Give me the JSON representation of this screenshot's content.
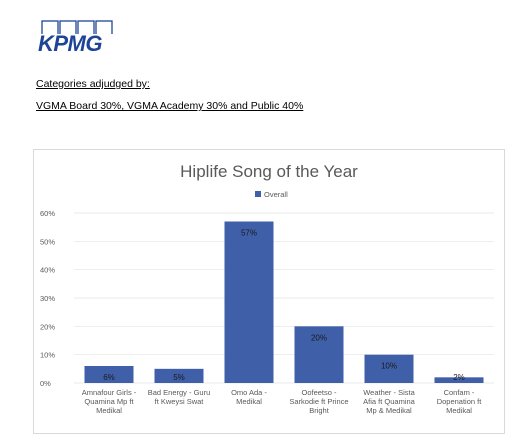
{
  "brand": {
    "logo_text": "KPMG",
    "color": "#1e4496"
  },
  "header": {
    "line1": "Categories adjudged by:",
    "line2": "VGMA Board  30%, VGMA Academy 30% and Public  40%"
  },
  "chart_data": {
    "type": "bar",
    "title": "Hiplife Song of the Year",
    "legend_position": "top",
    "grid": true,
    "ylim": [
      0,
      60
    ],
    "yticks": [
      "0%",
      "10%",
      "20%",
      "30%",
      "40%",
      "50%",
      "60%"
    ],
    "categories": [
      "Amnafour Girls - Quamina Mp ft Medikal",
      "Bad Energy - Guru ft Kweysi Swat",
      "Omo Ada - Medikal",
      "Oofeetso - Sarkodie ft Prince Bright",
      "Weather - Sista Afia ft Quamina Mp & Medikal",
      "Confam - Dopenation ft Medikal"
    ],
    "category_lines": [
      [
        "Amnafour Girls -",
        "Quamina Mp ft",
        "Medikal"
      ],
      [
        "Bad Energy - Guru",
        "ft Kweysi Swat"
      ],
      [
        "Omo Ada -",
        "Medikal"
      ],
      [
        "Oofeetso -",
        "Sarkodie ft Prince",
        "Bright"
      ],
      [
        "Weather - Sista",
        "Afia ft Quamina",
        "Mp & Medikal"
      ],
      [
        "Confam -",
        "Dopenation ft",
        "Medikal"
      ]
    ],
    "series": [
      {
        "name": "Overall",
        "values": [
          6,
          5,
          57,
          20,
          10,
          2
        ],
        "labels": [
          "6%",
          "5%",
          "57%",
          "20%",
          "10%",
          "2%"
        ]
      }
    ],
    "colors": {
      "bar": "#3f5fa8",
      "grid": "#e3e3e3",
      "title": "#595959",
      "axis_text": "#595959"
    }
  }
}
